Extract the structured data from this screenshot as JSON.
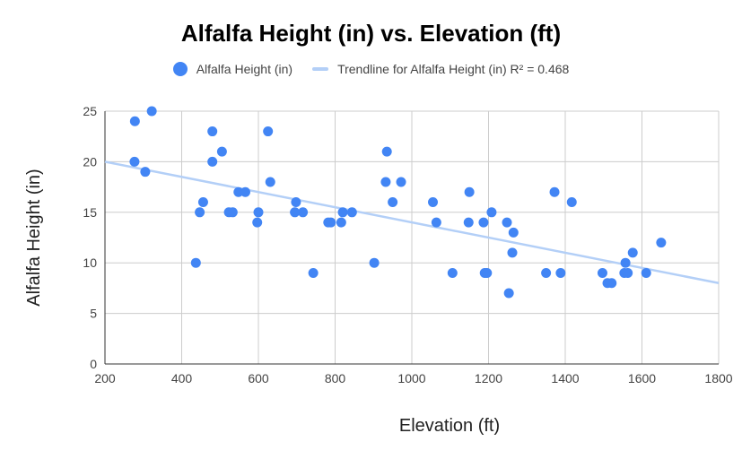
{
  "chart_data": {
    "type": "scatter",
    "title": "Alfalfa Height (in) vs. Elevation (ft)",
    "xlabel": "Elevation (ft)",
    "ylabel": "Alfalfa Height (in)",
    "xlim": [
      200,
      1800
    ],
    "ylim": [
      0,
      25
    ],
    "x_ticks": [
      "200",
      "400",
      "600",
      "800",
      "1000",
      "1200",
      "1400",
      "1600",
      "1800"
    ],
    "y_ticks": [
      "0",
      "5",
      "10",
      "15",
      "20",
      "25"
    ],
    "grid": true,
    "legend_position": "top",
    "series": [
      {
        "name": "Alfalfa Height (in)",
        "color": "#4285f4",
        "points": [
          [
            278,
            24
          ],
          [
            277,
            20
          ],
          [
            305,
            19
          ],
          [
            322,
            25
          ],
          [
            437,
            10
          ],
          [
            447,
            15
          ],
          [
            456,
            16
          ],
          [
            480,
            23
          ],
          [
            480,
            20
          ],
          [
            505,
            21
          ],
          [
            523,
            15
          ],
          [
            533,
            15
          ],
          [
            548,
            17
          ],
          [
            566,
            17
          ],
          [
            597,
            14
          ],
          [
            600,
            15
          ],
          [
            625,
            23
          ],
          [
            631,
            18
          ],
          [
            695,
            15
          ],
          [
            698,
            16
          ],
          [
            716,
            15
          ],
          [
            743,
            9
          ],
          [
            782,
            14
          ],
          [
            789,
            14
          ],
          [
            816,
            14
          ],
          [
            820,
            15
          ],
          [
            844,
            15
          ],
          [
            902,
            10
          ],
          [
            932,
            18
          ],
          [
            935,
            21
          ],
          [
            950,
            16
          ],
          [
            972,
            18
          ],
          [
            1055,
            16
          ],
          [
            1064,
            14
          ],
          [
            1106,
            9
          ],
          [
            1148,
            14
          ],
          [
            1150,
            17
          ],
          [
            1187,
            14
          ],
          [
            1190,
            9
          ],
          [
            1196,
            9
          ],
          [
            1208,
            15
          ],
          [
            1248,
            14
          ],
          [
            1253,
            7
          ],
          [
            1262,
            11
          ],
          [
            1265,
            13
          ],
          [
            1350,
            9
          ],
          [
            1372,
            17
          ],
          [
            1388,
            9
          ],
          [
            1417,
            16
          ],
          [
            1497,
            9
          ],
          [
            1510,
            8
          ],
          [
            1521,
            8
          ],
          [
            1554,
            9
          ],
          [
            1557,
            10
          ],
          [
            1563,
            9
          ],
          [
            1576,
            11
          ],
          [
            1611,
            9
          ],
          [
            1650,
            12
          ]
        ]
      },
      {
        "name": "Trendline for Alfalfa Height (in) R² = 0.468",
        "type": "trendline",
        "color": "#b3cff7",
        "x": [
          200,
          1800
        ],
        "values": [
          20.0,
          8.0
        ]
      }
    ]
  }
}
